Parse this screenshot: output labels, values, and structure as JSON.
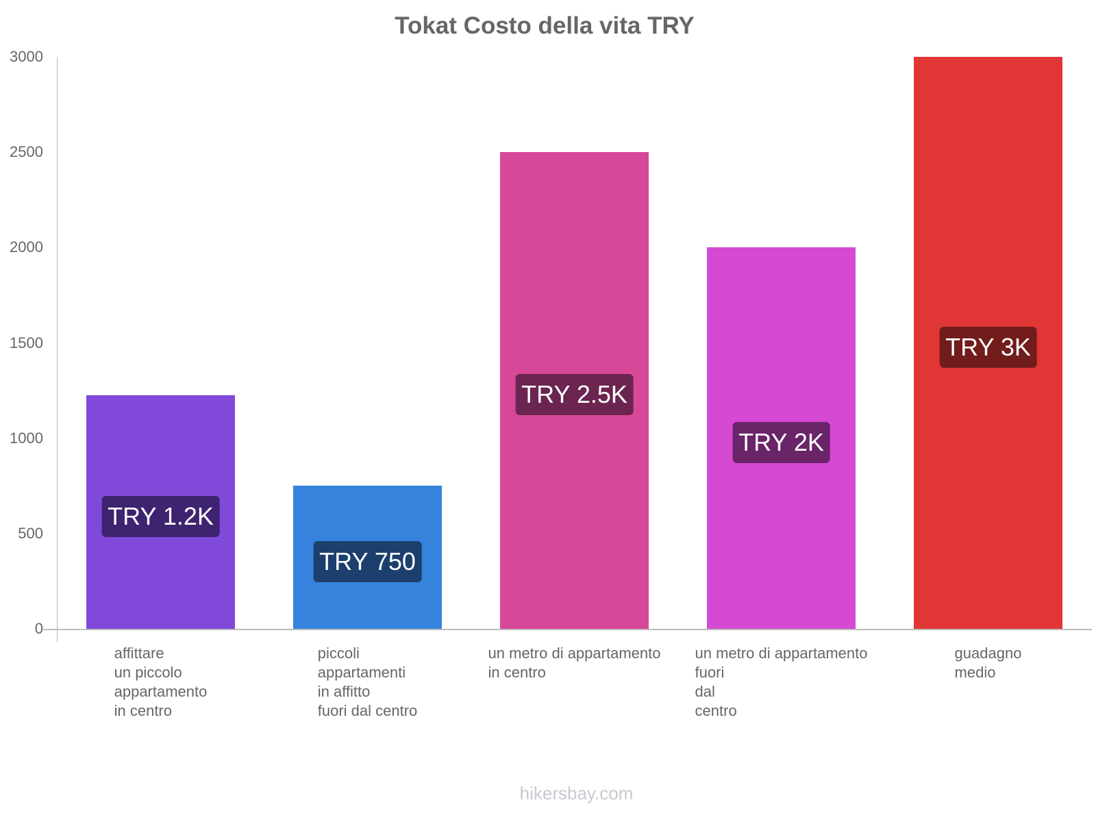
{
  "title": "Tokat Costo della vita TRY",
  "footer": "hikersbay.com",
  "y_axis": {
    "ticks": [
      "0",
      "500",
      "1000",
      "1500",
      "2000",
      "2500",
      "3000"
    ]
  },
  "bars": [
    {
      "label_lines": [
        "affittare",
        "un piccolo",
        "appartamento",
        "in centro"
      ],
      "value_label": "TRY 1.2K",
      "value": 1225,
      "color": "#8149d9",
      "label_bg": "#3e2370"
    },
    {
      "label_lines": [
        "piccoli",
        "appartamenti",
        "in affitto",
        "fuori dal centro"
      ],
      "value_label": "TRY 750",
      "value": 750,
      "color": "#3683de",
      "label_bg": "#1c3f6e"
    },
    {
      "label_lines": [
        "un metro di appartamento",
        "in centro"
      ],
      "value_label": "TRY 2.5K",
      "value": 2500,
      "color": "#d84899",
      "label_bg": "#6b2550"
    },
    {
      "label_lines": [
        "un metro di appartamento",
        "fuori",
        "dal",
        "centro"
      ],
      "value_label": "TRY 2K",
      "value": 2000,
      "color": "#d649d2",
      "label_bg": "#6a2468"
    },
    {
      "label_lines": [
        "guadagno",
        "medio"
      ],
      "value_label": "TRY 3K",
      "value": 3000,
      "color": "#e03636",
      "label_bg": "#721c1c"
    }
  ],
  "chart_data": {
    "type": "bar",
    "title": "Tokat Costo della vita TRY",
    "categories": [
      "affittare un piccolo appartamento in centro",
      "piccoli appartamenti in affitto fuori dal centro",
      "un metro di appartamento in centro",
      "un metro di appartamento fuori dal centro",
      "guadagno medio"
    ],
    "values": [
      1225,
      750,
      2500,
      2000,
      3000
    ],
    "data_labels": [
      "TRY 1.2K",
      "TRY 750",
      "TRY 2.5K",
      "TRY 2K",
      "TRY 3K"
    ],
    "colors": [
      "#8149d9",
      "#3683de",
      "#d84899",
      "#d649d2",
      "#e03636"
    ],
    "xlabel": "",
    "ylabel": "",
    "ylim": [
      0,
      3000
    ],
    "yticks": [
      0,
      500,
      1000,
      1500,
      2000,
      2500,
      3000
    ],
    "grid": false,
    "legend": "none",
    "source": "hikersbay.com"
  }
}
